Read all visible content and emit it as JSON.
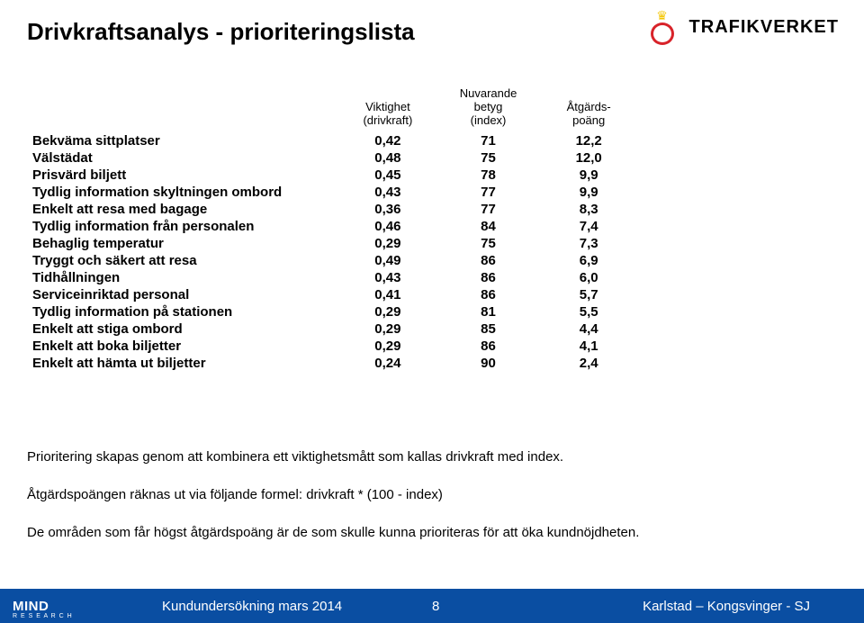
{
  "title": "Drivkraftsanalys - prioriteringslista",
  "logo": {
    "brand": "TRAFIKVERKET"
  },
  "table": {
    "headers": {
      "col1": "",
      "col2a": "Viktighet",
      "col2b": "(drivkraft)",
      "col3a": "Nuvarande",
      "col3b": "betyg",
      "col3c": "(index)",
      "col4a": "Åtgärds-",
      "col4b": "poäng"
    },
    "rows": [
      {
        "label": "Bekväma sittplatser",
        "v": "0,42",
        "b": "71",
        "p": "12,2"
      },
      {
        "label": "Välstädat",
        "v": "0,48",
        "b": "75",
        "p": "12,0"
      },
      {
        "label": "Prisvärd biljett",
        "v": "0,45",
        "b": "78",
        "p": "9,9"
      },
      {
        "label": "Tydlig information skyltningen ombord",
        "v": "0,43",
        "b": "77",
        "p": "9,9"
      },
      {
        "label": "Enkelt att resa med bagage",
        "v": "0,36",
        "b": "77",
        "p": "8,3"
      },
      {
        "label": "Tydlig information från personalen",
        "v": "0,46",
        "b": "84",
        "p": "7,4"
      },
      {
        "label": "Behaglig temperatur",
        "v": "0,29",
        "b": "75",
        "p": "7,3"
      },
      {
        "label": "Tryggt och säkert att resa",
        "v": "0,49",
        "b": "86",
        "p": "6,9"
      },
      {
        "label": "Tidhållningen",
        "v": "0,43",
        "b": "86",
        "p": "6,0"
      },
      {
        "label": "Serviceinriktad personal",
        "v": "0,41",
        "b": "86",
        "p": "5,7"
      },
      {
        "label": "Tydlig information på stationen",
        "v": "0,29",
        "b": "81",
        "p": "5,5"
      },
      {
        "label": "Enkelt att stiga ombord",
        "v": "0,29",
        "b": "85",
        "p": "4,4"
      },
      {
        "label": "Enkelt att boka biljetter",
        "v": "0,29",
        "b": "86",
        "p": "4,1"
      },
      {
        "label": "Enkelt att hämta ut biljetter",
        "v": "0,24",
        "b": "90",
        "p": "2,4"
      }
    ]
  },
  "body": {
    "p1": "Prioritering skapas genom att kombinera ett viktighetsmått som kallas drivkraft med index.",
    "p2": "Åtgärdspoängen räknas ut via följande formel: drivkraft * (100 - index)",
    "p3": "De områden som får högst åtgärdspoäng är de som skulle kunna prioriteras för att öka kundnöjdheten."
  },
  "footer": {
    "mind_top": "MIND",
    "mind_bot": "R E S E A R C H",
    "center": "Kundundersökning mars 2014",
    "page": "8",
    "right": "Karlstad – Kongsvinger - SJ"
  },
  "colors": {
    "footer_bg": "#0a4ea2",
    "brand_red": "#d8232a",
    "brand_yellow": "#f4c500"
  }
}
